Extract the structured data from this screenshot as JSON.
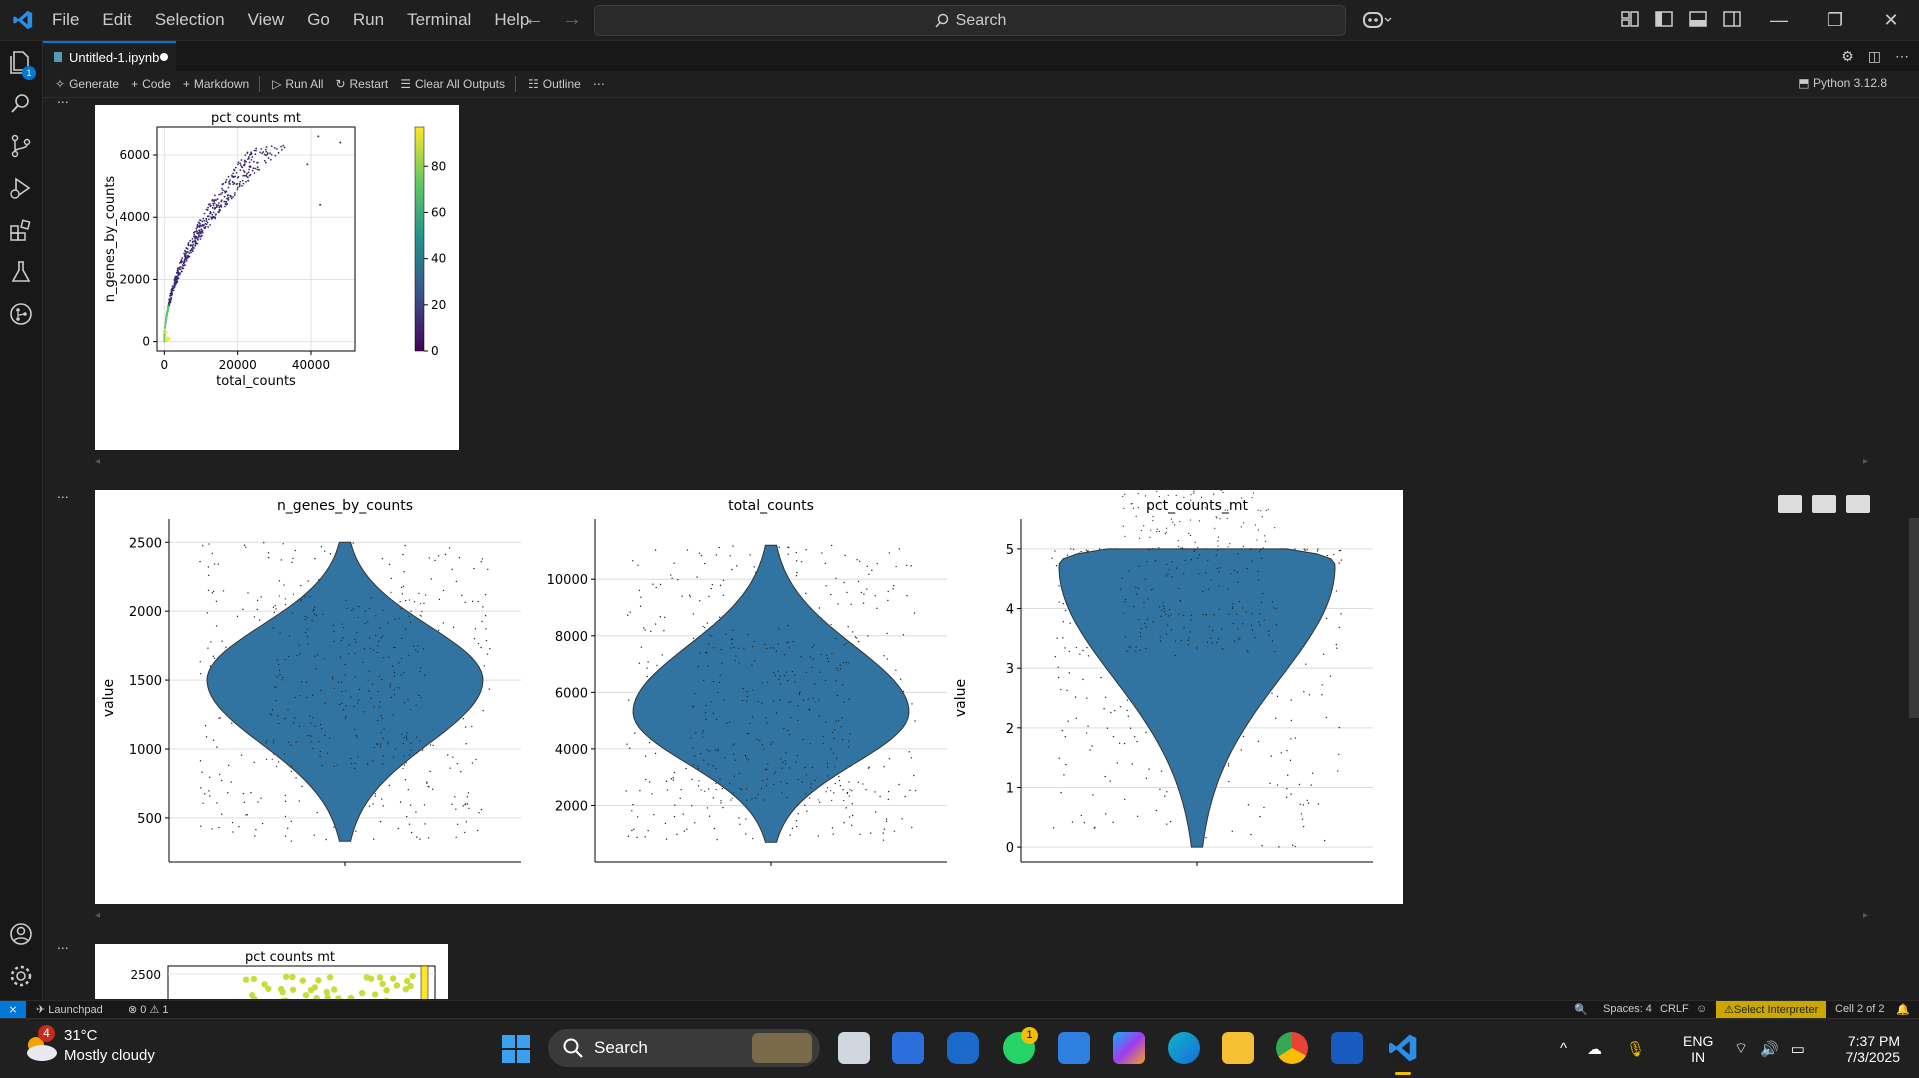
{
  "titlebar": {
    "menu": [
      "File",
      "Edit",
      "Selection",
      "View",
      "Go",
      "Run",
      "Terminal",
      "Help"
    ],
    "search_label": "Search"
  },
  "activity": {
    "explorer_badge": "1"
  },
  "tab": {
    "title": "Untitled-1.ipynb"
  },
  "toolbar": {
    "generate": "Generate",
    "code": "Code",
    "markdown": "Markdown",
    "run_all": "Run All",
    "restart": "Restart",
    "clear_outputs": "Clear All Outputs",
    "outline": "Outline",
    "kernel": "Python 3.12.8"
  },
  "cell_more": "...",
  "chart_data": [
    {
      "type": "scatter",
      "title": "pct counts mt",
      "xlabel": "total_counts",
      "ylabel": "n_genes_by_counts",
      "xticks": [
        "0",
        "20000",
        "40000"
      ],
      "yticks": [
        "0",
        "2000",
        "4000",
        "6000"
      ],
      "xlim": [
        -2000,
        52000
      ],
      "ylim": [
        -300,
        6900
      ],
      "colorbar": {
        "ticks": [
          "0",
          "20",
          "40",
          "60",
          "80"
        ],
        "range": [
          0,
          97
        ],
        "colors": [
          "#440154",
          "#3b528b",
          "#21918c",
          "#5ec962",
          "#fde725"
        ]
      },
      "grid": true
    },
    {
      "type": "violin",
      "title": "n_genes_by_counts",
      "ylabel": "value",
      "yticks": [
        "500",
        "1000",
        "1500",
        "2000",
        "2500"
      ],
      "ylim": [
        180,
        2560
      ],
      "range": [
        330,
        2500
      ],
      "widest_at": 1500,
      "color": "#3274a1"
    },
    {
      "type": "violin",
      "title": "total_counts",
      "ylabel": "",
      "yticks": [
        "2000",
        "4000",
        "6000",
        "8000",
        "10000"
      ],
      "ylim": [
        0,
        11600
      ],
      "range": [
        700,
        11200
      ],
      "widest_at": 5300,
      "color": "#3274a1"
    },
    {
      "type": "violin",
      "title": "pct_counts_mt",
      "ylabel": "value",
      "yticks": [
        "0",
        "1",
        "2",
        "3",
        "4",
        "5"
      ],
      "ylim": [
        -0.25,
        5.25
      ],
      "range": [
        0,
        5
      ],
      "widest_at": 4.7,
      "color": "#3274a1"
    },
    {
      "type": "scatter",
      "title": "pct counts mt",
      "ylabel": "",
      "yticks": [
        "2500"
      ],
      "partial": true
    }
  ],
  "statusbar": {
    "launchpad": "Launchpad",
    "problems": "0",
    "warnings": "1",
    "spaces": "Spaces: 4",
    "eol": "CRLF",
    "interpreter": "Select Interpreter",
    "cell": "Cell 2 of 2"
  },
  "taskbar": {
    "weather_badge": "4",
    "temperature": "31°C",
    "weather": "Mostly cloudy",
    "search": "Search",
    "whatsapp_badge": "1",
    "lang1": "ENG",
    "lang2": "IN",
    "time": "7:37 PM",
    "date": "7/3/2025"
  }
}
